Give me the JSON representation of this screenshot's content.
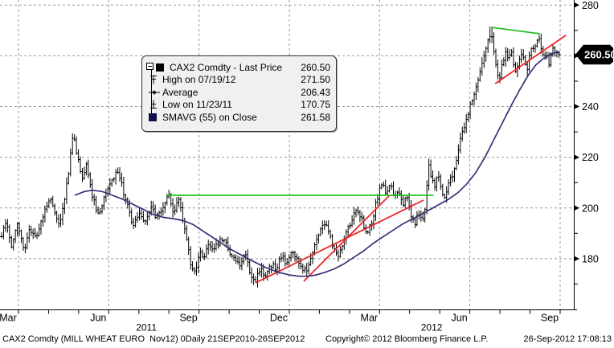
{
  "window": {
    "bg": "#ffffff"
  },
  "legend": {
    "rows": [
      {
        "icon": "black-square",
        "label": "CAX2 Comdty - Last Price",
        "value": "260.50"
      },
      {
        "icon": "high-marker",
        "label": "High on 07/19/12",
        "value": "271.50"
      },
      {
        "icon": "average-marker",
        "label": "Average",
        "value": "206.43"
      },
      {
        "icon": "low-marker",
        "label": "Low on 11/23/11",
        "value": "170.75"
      },
      {
        "icon": "navy-square",
        "label": "SMAVG (55) on Close",
        "value": "261.58"
      }
    ]
  },
  "price_tag": {
    "value": "260.50",
    "bg": "#000000",
    "fg": "#ffffff"
  },
  "footer": {
    "left": "CAX2 Comdty (MILL WHEAT EURO  Nov12) 0Daily 21SEP2010-26SEP2012",
    "copyright": "Copyright© 2012 Bloomberg Finance L.P.",
    "timestamp": "26-Sep-2012 17:08:13"
  },
  "chart_data": {
    "type": "bar",
    "subtype": "ohlc-hlc-bars",
    "title": "CAX2 Comdty - Last Price",
    "time_unit": "months_since_2011-01-01_month_end",
    "x_domain": [
      2.386,
      21.455
    ],
    "y_axis": {
      "min": 160,
      "max": 282,
      "major_ticks": [
        180,
        200,
        220,
        240,
        260,
        280
      ],
      "minor_ticks": [
        170,
        190,
        210,
        230,
        250,
        270
      ],
      "grid": "dashed"
    },
    "x_axis": {
      "quarter_ticks": [
        {
          "t": 3,
          "label": "Mar"
        },
        {
          "t": 6,
          "label": "Jun"
        },
        {
          "t": 9,
          "label": "Sep"
        },
        {
          "t": 12,
          "label": "Dec"
        },
        {
          "t": 15,
          "label": "Mar"
        },
        {
          "t": 18,
          "label": "Jun"
        },
        {
          "t": 21,
          "label": "Sep"
        }
      ],
      "minor_tick_every_month": true,
      "year_labels": [
        {
          "t": 7.25,
          "label": "2011"
        },
        {
          "t": 16.73,
          "label": "2012"
        }
      ]
    },
    "key_points": {
      "last_price": 260.5,
      "high": {
        "date": "07/19/12",
        "value": 271.5,
        "t": 18.7
      },
      "average": 206.43,
      "low": {
        "date": "11/23/11",
        "value": 170.75,
        "t": 10.88
      },
      "smavg_55_close": 261.58
    },
    "series": [
      {
        "name": "last_price_path",
        "role": "bars",
        "color": "#000000",
        "points": [
          [
            2.44,
            190
          ],
          [
            2.6,
            196
          ],
          [
            2.76,
            185
          ],
          [
            2.97,
            194
          ],
          [
            3.19,
            184
          ],
          [
            3.4,
            192
          ],
          [
            3.59,
            188
          ],
          [
            3.85,
            199
          ],
          [
            4.07,
            203
          ],
          [
            4.26,
            196
          ],
          [
            4.39,
            194
          ],
          [
            4.52,
            203
          ],
          [
            4.66,
            214
          ],
          [
            4.82,
            231
          ],
          [
            4.92,
            222
          ],
          [
            5.11,
            212
          ],
          [
            5.27,
            217
          ],
          [
            5.46,
            204
          ],
          [
            5.67,
            197
          ],
          [
            5.86,
            204
          ],
          [
            6.04,
            210
          ],
          [
            6.26,
            214
          ],
          [
            6.39,
            211
          ],
          [
            6.61,
            201
          ],
          [
            6.79,
            193
          ],
          [
            6.98,
            198
          ],
          [
            7.19,
            195
          ],
          [
            7.41,
            200
          ],
          [
            7.59,
            196
          ],
          [
            7.81,
            200
          ],
          [
            8.0,
            205
          ],
          [
            8.16,
            198
          ],
          [
            8.32,
            203
          ],
          [
            8.45,
            196
          ],
          [
            8.58,
            188
          ],
          [
            8.74,
            177
          ],
          [
            8.88,
            175
          ],
          [
            9.01,
            183
          ],
          [
            9.14,
            180
          ],
          [
            9.28,
            186
          ],
          [
            9.49,
            183
          ],
          [
            9.7,
            188
          ],
          [
            9.92,
            185
          ],
          [
            10.13,
            181
          ],
          [
            10.34,
            178
          ],
          [
            10.53,
            182
          ],
          [
            10.72,
            174
          ],
          [
            10.88,
            171
          ],
          [
            11.04,
            176
          ],
          [
            11.2,
            173
          ],
          [
            11.36,
            178
          ],
          [
            11.55,
            176
          ],
          [
            11.73,
            181
          ],
          [
            11.92,
            178
          ],
          [
            12.08,
            183
          ],
          [
            12.24,
            180
          ],
          [
            12.4,
            176
          ],
          [
            12.56,
            175
          ],
          [
            12.72,
            180
          ],
          [
            12.88,
            186
          ],
          [
            13.04,
            191
          ],
          [
            13.18,
            194
          ],
          [
            13.31,
            190
          ],
          [
            13.44,
            186
          ],
          [
            13.6,
            181
          ],
          [
            13.76,
            186
          ],
          [
            13.92,
            191
          ],
          [
            14.08,
            196
          ],
          [
            14.24,
            200
          ],
          [
            14.4,
            196
          ],
          [
            14.56,
            189
          ],
          [
            14.7,
            193
          ],
          [
            14.83,
            199
          ],
          [
            14.97,
            206
          ],
          [
            15.1,
            209
          ],
          [
            15.23,
            205
          ],
          [
            15.37,
            209
          ],
          [
            15.5,
            203
          ],
          [
            15.63,
            207
          ],
          [
            15.77,
            201
          ],
          [
            15.9,
            204
          ],
          [
            16.03,
            198
          ],
          [
            16.17,
            194
          ],
          [
            16.3,
            198
          ],
          [
            16.43,
            195
          ],
          [
            16.54,
            202
          ],
          [
            16.62,
            217
          ],
          [
            16.73,
            212
          ],
          [
            16.83,
            209
          ],
          [
            16.94,
            213
          ],
          [
            17.05,
            207
          ],
          [
            17.15,
            205
          ],
          [
            17.29,
            209
          ],
          [
            17.42,
            213
          ],
          [
            17.56,
            219
          ],
          [
            17.69,
            227
          ],
          [
            17.82,
            232
          ],
          [
            17.96,
            238
          ],
          [
            18.09,
            243
          ],
          [
            18.22,
            248
          ],
          [
            18.36,
            254
          ],
          [
            18.49,
            261
          ],
          [
            18.6,
            266
          ],
          [
            18.7,
            270
          ],
          [
            18.78,
            262
          ],
          [
            18.89,
            255
          ],
          [
            18.97,
            251
          ],
          [
            19.08,
            257
          ],
          [
            19.18,
            262
          ],
          [
            19.29,
            258
          ],
          [
            19.37,
            263
          ],
          [
            19.45,
            256
          ],
          [
            19.53,
            252
          ],
          [
            19.64,
            258
          ],
          [
            19.74,
            263
          ],
          [
            19.82,
            258
          ],
          [
            19.9,
            254
          ],
          [
            19.98,
            260
          ],
          [
            20.06,
            265
          ],
          [
            20.14,
            262
          ],
          [
            20.22,
            266
          ],
          [
            20.3,
            268
          ],
          [
            20.38,
            263
          ],
          [
            20.46,
            258
          ],
          [
            20.54,
            262
          ],
          [
            20.62,
            257
          ],
          [
            20.7,
            261
          ],
          [
            20.78,
            264
          ],
          [
            20.86,
            260
          ],
          [
            20.94,
            262
          ],
          [
            20.99,
            260.5
          ]
        ]
      },
      {
        "name": "SMAVG (55) on Close",
        "role": "line",
        "color": "#32327a",
        "points": [
          [
            4.87,
            205
          ],
          [
            5.19,
            206.5
          ],
          [
            5.46,
            207
          ],
          [
            5.78,
            206.5
          ],
          [
            6.12,
            205
          ],
          [
            6.45,
            203.5
          ],
          [
            6.79,
            201.5
          ],
          [
            7.14,
            199.5
          ],
          [
            7.46,
            197.5
          ],
          [
            7.81,
            196.3
          ],
          [
            8.13,
            195.8
          ],
          [
            8.48,
            195
          ],
          [
            8.8,
            193.5
          ],
          [
            9.12,
            191
          ],
          [
            9.44,
            188.5
          ],
          [
            9.76,
            186
          ],
          [
            10.08,
            183.5
          ],
          [
            10.4,
            181.5
          ],
          [
            10.72,
            179.5
          ],
          [
            11.04,
            177.5
          ],
          [
            11.36,
            175.8
          ],
          [
            11.68,
            174.5
          ],
          [
            12.0,
            173.6
          ],
          [
            12.32,
            173.1
          ],
          [
            12.59,
            173.1
          ],
          [
            12.86,
            173.5
          ],
          [
            13.18,
            174.6
          ],
          [
            13.5,
            176
          ],
          [
            13.82,
            178
          ],
          [
            14.14,
            180.5
          ],
          [
            14.46,
            183
          ],
          [
            14.78,
            186
          ],
          [
            15.1,
            188.5
          ],
          [
            15.42,
            191
          ],
          [
            15.74,
            193.5
          ],
          [
            16.06,
            195.5
          ],
          [
            16.38,
            197.5
          ],
          [
            16.7,
            199.5
          ],
          [
            17.0,
            201.5
          ],
          [
            17.3,
            203.5
          ],
          [
            17.6,
            206
          ],
          [
            17.9,
            209.5
          ],
          [
            18.2,
            214
          ],
          [
            18.5,
            220
          ],
          [
            18.8,
            227
          ],
          [
            19.1,
            234
          ],
          [
            19.4,
            241
          ],
          [
            19.7,
            247.5
          ],
          [
            19.95,
            252.5
          ],
          [
            20.2,
            256.5
          ],
          [
            20.45,
            259
          ],
          [
            20.7,
            260.8
          ],
          [
            20.9,
            261.5
          ],
          [
            21.0,
            261.5
          ]
        ]
      }
    ],
    "trendlines": [
      {
        "color": "#22c022",
        "points": [
          [
            7.92,
            205
          ],
          [
            16.79,
            205
          ]
        ]
      },
      {
        "color": "#22c022",
        "points": [
          [
            18.73,
            271.2
          ],
          [
            20.33,
            268.7
          ]
        ]
      },
      {
        "color": "#ee2525",
        "points": [
          [
            10.88,
            170.5
          ],
          [
            16.46,
            203.1
          ]
        ]
      },
      {
        "color": "#ee2525",
        "points": [
          [
            12.48,
            171.1
          ],
          [
            15.31,
            204.7
          ]
        ]
      },
      {
        "color": "#ee2525",
        "points": [
          [
            18.84,
            249.0
          ],
          [
            21.19,
            268.1
          ]
        ]
      }
    ],
    "colors": {
      "bars": "#000000",
      "smavg": "#32327a",
      "trend_green": "#22c022",
      "trend_red": "#ee2525",
      "grid": "#999999",
      "axis": "#000000"
    },
    "legend_position": "upper-left-box"
  }
}
